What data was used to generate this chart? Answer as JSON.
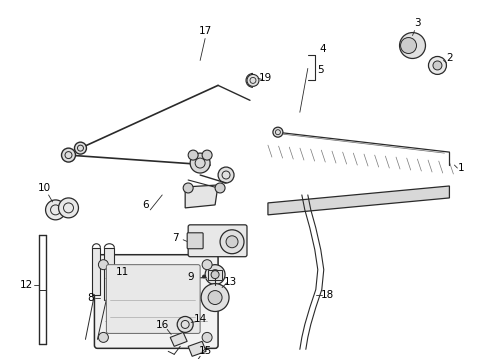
{
  "background_color": "#ffffff",
  "fig_width": 4.89,
  "fig_height": 3.6,
  "dpi": 100,
  "line_color": "#2a2a2a",
  "label_fontsize": 7.5
}
